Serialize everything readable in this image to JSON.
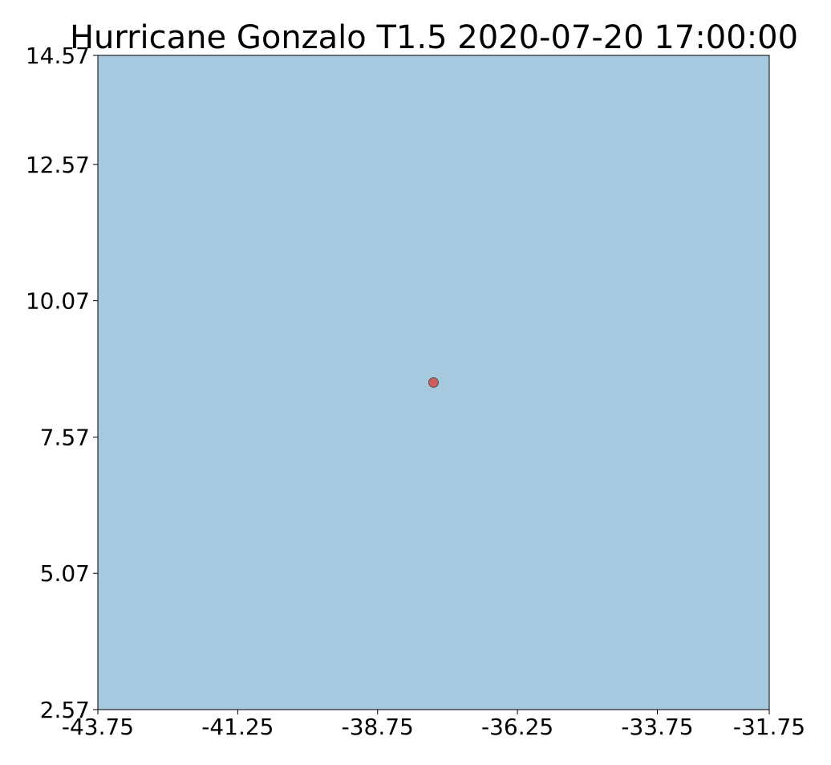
{
  "chart_data": {
    "type": "scatter",
    "title": "Hurricane Gonzalo T1.5 2020-07-20 17:00:00",
    "xlabel": "",
    "ylabel": "",
    "xlim": [
      -43.75,
      -31.75
    ],
    "ylim": [
      2.57,
      14.57
    ],
    "xticks": [
      -43.75,
      -41.25,
      -38.75,
      -36.25,
      -33.75,
      -31.75
    ],
    "xtick_labels": [
      "-43.75",
      "-41.25",
      "-38.75",
      "-36.25",
      "-33.75",
      "-31.75"
    ],
    "yticks": [
      2.57,
      5.07,
      7.57,
      10.07,
      12.57,
      14.57
    ],
    "ytick_labels": [
      "2.57",
      "5.07",
      "7.57",
      "10.07",
      "12.57",
      "14.57"
    ],
    "grid": false,
    "background_color": "#a6c9df",
    "series": [
      {
        "marker_color": "#cd5c5c",
        "points": [
          {
            "x": -37.75,
            "y": 8.57
          }
        ]
      }
    ]
  }
}
